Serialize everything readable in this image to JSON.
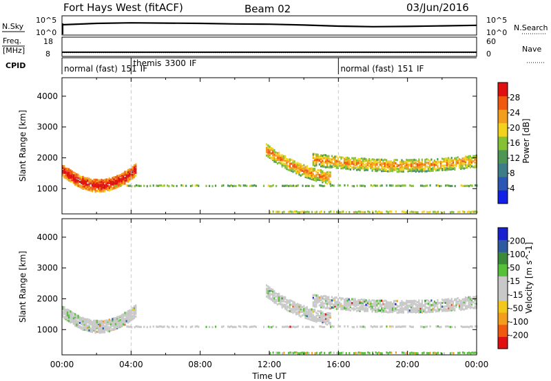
{
  "header": {
    "radar": "Fort Hays West (fitACF)",
    "beam": "Beam 02",
    "date": "03/Jun/2016"
  },
  "left_labels": {
    "nsky": "N.Sky",
    "freq": "Freq.",
    "mhz": "[MHz]",
    "cpid": "CPID"
  },
  "right_labels": {
    "nsearch": "N.Search",
    "nave": "Nave"
  },
  "colors": {
    "power_scale": [
      "#1020e6",
      "#2c56b3",
      "#3d7d88",
      "#4d9654",
      "#86c034",
      "#f2d21c",
      "#f39d1c",
      "#f05a10",
      "#e01010"
    ],
    "velocity_scale": [
      "#e01010",
      "#f05a10",
      "#f39d1c",
      "#f2c81c",
      "#c8c8c8",
      "#c8c8c8",
      "#56c038",
      "#3a8a3a",
      "#2d5aa0",
      "#1820d0"
    ]
  },
  "chart_data": [
    {
      "type": "line",
      "title": "",
      "ylabels_left": [
        "10^5",
        "10^0"
      ],
      "ylabels_right": [
        "10^5",
        "10^0"
      ],
      "legend_left": "N.Sky",
      "legend_right": "N.Search",
      "x": [
        0,
        2,
        4,
        6,
        8,
        10,
        12,
        14,
        16,
        18,
        20,
        22,
        24
      ],
      "y": [
        3.5,
        4.0,
        4.2,
        4.1,
        4.0,
        3.8,
        3.7,
        3.4,
        3.0,
        2.8,
        2.9,
        3.1,
        3.3
      ]
    },
    {
      "type": "line",
      "ylabels_left": [
        "18",
        "8"
      ],
      "ylabels_right": [
        "60",
        "0"
      ],
      "legend_left": "Freq. [MHz]",
      "legend_right": "Nave",
      "x": [
        0,
        24
      ],
      "freq": [
        10.2,
        10.2
      ],
      "nave": [
        12,
        12
      ]
    },
    {
      "type": "table",
      "label": "CPID",
      "segments": [
        {
          "start": 0,
          "end": 4,
          "name": "normal (fast)",
          "cpid": "151",
          "suffix": "IF"
        },
        {
          "start": 4,
          "end": 16,
          "name": "themis",
          "cpid": "3300",
          "suffix": "IF"
        },
        {
          "start": 16,
          "end": 24,
          "name": "normal (fast)",
          "cpid": "151",
          "suffix": "IF"
        }
      ]
    },
    {
      "type": "heatmap",
      "parameter": "power",
      "ylabel": "Slant Range [km]",
      "yticks": [
        1000,
        2000,
        3000,
        4000
      ],
      "ylim": [
        180,
        4600
      ],
      "xlim": [
        0,
        24
      ],
      "colorbar_label": "Power [dB]",
      "colorbar_ticks": [
        "4",
        "8",
        "12",
        "16",
        "20",
        "24",
        "28"
      ],
      "echo_regions": [
        {
          "t0": 0.0,
          "t1": 4.3,
          "r_start": 1650,
          "r_mid": 1150,
          "r_end": 1700,
          "intensity": 0.85
        },
        {
          "t0": 11.8,
          "t1": 15.5,
          "r_start": 2300,
          "r_mid": 1700,
          "r_end": 1400,
          "intensity": 0.5
        },
        {
          "t0": 14.5,
          "t1": 24.0,
          "r_start": 2000,
          "r_mid": 1800,
          "r_end": 1950,
          "intensity": 0.45
        },
        {
          "t0": 3.0,
          "t1": 24.0,
          "r_start": 1150,
          "r_mid": 1150,
          "r_end": 1150,
          "intensity": 0.25
        },
        {
          "t0": 12.0,
          "t1": 24.0,
          "r_start": 300,
          "r_mid": 300,
          "r_end": 300,
          "intensity": 0.4
        }
      ]
    },
    {
      "type": "heatmap",
      "parameter": "velocity",
      "ylabel": "Slant Range [km]",
      "yticks": [
        1000,
        2000,
        3000,
        4000
      ],
      "ylim": [
        180,
        4600
      ],
      "xlim": [
        0,
        24
      ],
      "xticks": [
        "00:00",
        "04:00",
        "08:00",
        "12:00",
        "16:00",
        "20:00",
        "00:00"
      ],
      "xlabel": "Time UT",
      "colorbar_label": "Velocity [m s^-1]",
      "colorbar_ticks": [
        "-200",
        "-100",
        "-50",
        "-15",
        "15",
        "50",
        "100",
        "200"
      ]
    }
  ]
}
